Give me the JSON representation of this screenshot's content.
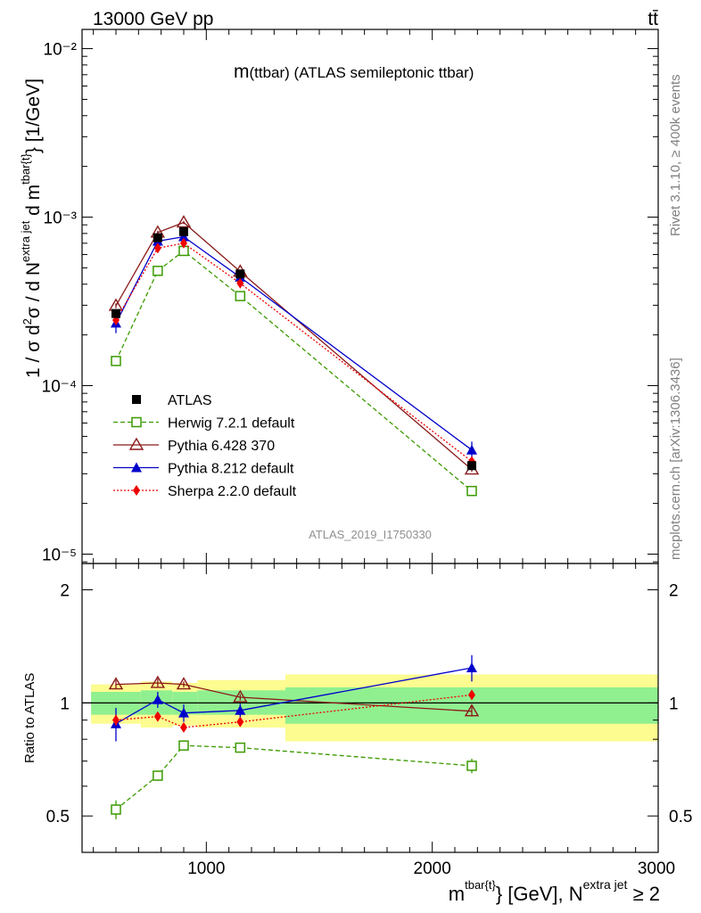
{
  "header": {
    "left_label": "13000 GeV pp",
    "right_label": "tt̄"
  },
  "side_labels": {
    "rivet": "Rivet 3.1.10, ≥ 400k events",
    "mcplots": "mcplots.cern.ch [arXiv:1306.3436]"
  },
  "chart_data": [
    {
      "type": "line",
      "panel": "main",
      "title": "m(ttbar) (ATLAS semileptonic ttbar)",
      "title_main": "m",
      "title_rest": "(ttbar) (ATLAS semileptonic ttbar)",
      "watermark": "ATLAS_2019_I1750330",
      "ylabel": "1 / σ d²σ / d N^{extra jet} d m^{tbar{t}} [1/GeV]",
      "ylabel_parts": {
        "p1": "1 / σ d",
        "p2": "2",
        "p3": "σ / d N",
        "p4": "extra jet",
        "p5": " d m",
        "p6": "tbar{t}",
        "p7": "} [1/GeV]"
      },
      "yscale": "log",
      "ylim": [
        8.8e-06,
        0.013
      ],
      "xlim": [
        450,
        3000
      ],
      "y_tick_labels": [
        "10⁻⁵",
        "10⁻⁴",
        "10⁻³",
        "10⁻²"
      ],
      "legend": "middle-left",
      "series": [
        {
          "name": "ATLAS",
          "marker": "square-filled",
          "color": "#000000",
          "x": [
            600,
            785,
            900,
            1150,
            2175
          ],
          "y": [
            0.000268,
            0.000755,
            0.00082,
            0.00046,
            3.35e-05
          ],
          "yerr": [
            1.2e-05,
            3e-05,
            3e-05,
            2e-05,
            1.5e-06
          ]
        },
        {
          "name": "Herwig 7.2.1 default",
          "marker": "square-open",
          "line": "dashed",
          "color": "#3b9a00",
          "x": [
            600,
            785,
            900,
            1150,
            2175
          ],
          "y": [
            0.00014,
            0.00048,
            0.00063,
            0.00034,
            2.37e-05
          ],
          "yerr": [
            5e-06,
            1e-05,
            1e-05,
            8e-06,
            8e-07
          ]
        },
        {
          "name": "Pythia 6.428 370",
          "marker": "triangle-open",
          "line": "solid",
          "color": "#8b1a1a",
          "x": [
            600,
            785,
            900,
            1150,
            2175
          ],
          "y": [
            0.000298,
            0.00081,
            0.00093,
            0.000475,
            3.18e-05
          ],
          "yerr": [
            1e-05,
            2e-05,
            2e-05,
            1e-05,
            1e-06
          ]
        },
        {
          "name": "Pythia 8.212 default",
          "marker": "triangle-filled",
          "line": "solid",
          "color": "#0000cc",
          "x": [
            600,
            785,
            900,
            1150,
            2175
          ],
          "y": [
            0.000235,
            0.00072,
            0.000765,
            0.00044,
            4.15e-05
          ],
          "yerr": [
            3e-05,
            4e-05,
            4e-05,
            2e-05,
            5e-06
          ]
        },
        {
          "name": "Sherpa 2.2.0 default",
          "marker": "diamond-filled",
          "line": "dotted",
          "color": "#ee0000",
          "x": [
            600,
            785,
            900,
            1150,
            2175
          ],
          "y": [
            0.000245,
            0.000655,
            0.0007,
            0.000405,
            3.55e-05
          ],
          "yerr": [
            1e-05,
            2e-05,
            2e-05,
            1e-05,
            2e-06
          ]
        }
      ]
    },
    {
      "type": "line",
      "panel": "ratio",
      "ylabel": "Ratio to ATLAS",
      "xlabel": "m^{tbar{t}} [GeV], N^{extra jet} ≥ 2",
      "xlabel_parts": {
        "p1": "m",
        "p2": "tbar{t}",
        "p3": "} [GeV], N",
        "p4": "extra jet",
        "p5": " ≥ 2"
      },
      "yscale": "log",
      "ylim": [
        0.4,
        2.35
      ],
      "xlim": [
        450,
        3000
      ],
      "x_ticks": [
        1000,
        2000,
        3000
      ],
      "x_tick_labels": [
        "1000",
        "2000",
        "3000"
      ],
      "y_ticks": [
        0.5,
        1,
        2
      ],
      "y_tick_labels": [
        "0.5",
        "1",
        "2"
      ],
      "bands": {
        "bins": [
          [
            490,
            710
          ],
          [
            710,
            850
          ],
          [
            850,
            960
          ],
          [
            960,
            1350
          ],
          [
            1350,
            3000
          ]
        ],
        "inner": [
          [
            0.93,
            1.07
          ],
          [
            0.93,
            1.08
          ],
          [
            0.93,
            1.07
          ],
          [
            0.93,
            1.08
          ],
          [
            0.88,
            1.1
          ]
        ],
        "outer": [
          [
            0.88,
            1.12
          ],
          [
            0.86,
            1.14
          ],
          [
            0.87,
            1.13
          ],
          [
            0.86,
            1.15
          ],
          [
            0.79,
            1.19
          ]
        ],
        "inner_color": "#90f090",
        "outer_color": "#fcfc90"
      },
      "series": [
        {
          "name": "Herwig 7.2.1 default",
          "marker": "square-open",
          "line": "dashed",
          "color": "#3b9a00",
          "x": [
            600,
            785,
            900,
            1150,
            2175
          ],
          "y": [
            0.52,
            0.64,
            0.77,
            0.76,
            0.68
          ],
          "yerr": [
            0.03,
            0.02,
            0.015,
            0.01,
            0.03
          ]
        },
        {
          "name": "Pythia 6.428 370",
          "marker": "triangle-open",
          "line": "solid",
          "color": "#8b1a1a",
          "x": [
            600,
            785,
            900,
            1150,
            2175
          ],
          "y": [
            1.12,
            1.13,
            1.12,
            1.035,
            0.95
          ],
          "yerr": [
            0.03,
            0.03,
            0.02,
            0.02,
            0.03
          ]
        },
        {
          "name": "Pythia 8.212 default",
          "marker": "triangle-filled",
          "line": "solid",
          "color": "#0000cc",
          "x": [
            600,
            785,
            900,
            1150,
            2175
          ],
          "y": [
            0.88,
            1.02,
            0.94,
            0.955,
            1.24
          ],
          "yerr": [
            0.09,
            0.05,
            0.05,
            0.04,
            0.1
          ]
        },
        {
          "name": "Sherpa 2.2.0 default",
          "marker": "diamond-filled",
          "line": "dotted",
          "color": "#ee0000",
          "x": [
            600,
            785,
            900,
            1150,
            2175
          ],
          "y": [
            0.9,
            0.92,
            0.86,
            0.89,
            1.05
          ],
          "yerr": [
            0.03,
            0.02,
            0.02,
            0.02,
            0.03
          ]
        }
      ]
    }
  ]
}
